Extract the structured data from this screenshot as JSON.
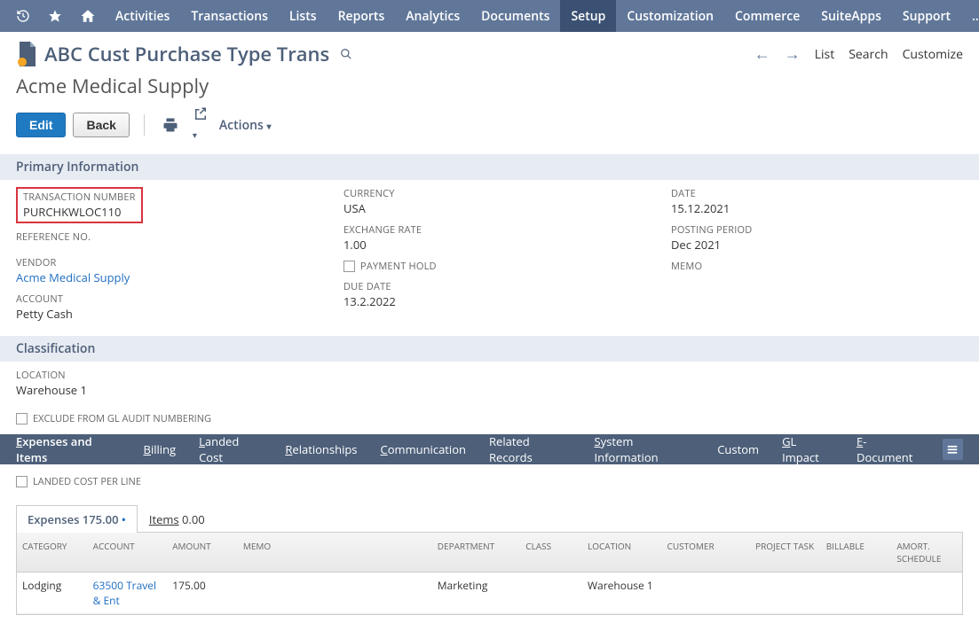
{
  "nav": {
    "items": [
      "Activities",
      "Transactions",
      "Lists",
      "Reports",
      "Analytics",
      "Documents",
      "Setup",
      "Customization",
      "Commerce",
      "SuiteApps",
      "Support"
    ],
    "active_index": 6,
    "more": "..."
  },
  "header": {
    "title": "ABC Cust Purchase Type Trans",
    "subtitle": "Acme Medical Supply",
    "right": {
      "list": "List",
      "search": "Search",
      "customize": "Customize"
    }
  },
  "actions": {
    "edit": "Edit",
    "back": "Back",
    "actions_label": "Actions"
  },
  "sections": {
    "primary": "Primary Information",
    "classification": "Classification"
  },
  "fields": {
    "transaction_number": {
      "label": "TRANSACTION NUMBER",
      "value": "PURCHKWLOC110"
    },
    "reference_no": {
      "label": "REFERENCE NO."
    },
    "vendor": {
      "label": "VENDOR",
      "value": "Acme Medical Supply"
    },
    "account": {
      "label": "ACCOUNT",
      "value": "Petty Cash"
    },
    "currency": {
      "label": "CURRENCY",
      "value": "USA"
    },
    "exchange_rate": {
      "label": "EXCHANGE RATE",
      "value": "1.00"
    },
    "payment_hold": {
      "label": "PAYMENT HOLD"
    },
    "due_date": {
      "label": "DUE DATE",
      "value": "13.2.2022"
    },
    "date": {
      "label": "DATE",
      "value": "15.12.2021"
    },
    "posting_period": {
      "label": "POSTING PERIOD",
      "value": "Dec 2021"
    },
    "memo": {
      "label": "MEMO"
    },
    "location": {
      "label": "LOCATION",
      "value": "Warehouse 1"
    },
    "exclude_gl": "EXCLUDE FROM GL AUDIT NUMBERING",
    "landed_cost_per_line": "LANDED COST PER LINE"
  },
  "subtabs": [
    "Expenses and Items",
    "Billing",
    "Landed Cost",
    "Relationships",
    "Communication",
    "Related Records",
    "System Information",
    "Custom",
    "GL Impact",
    "E-Document"
  ],
  "subtabs_underline_first": [
    "E",
    "B",
    "L",
    "R",
    "C",
    "",
    "S",
    "",
    "G",
    "E"
  ],
  "subtabs_active_index": 0,
  "inner_tabs": {
    "expenses": {
      "label": "Expenses",
      "amount": "175.00",
      "flag": "•"
    },
    "items": {
      "label": "Items",
      "amount": "0.00"
    }
  },
  "grid": {
    "columns": [
      "CATEGORY",
      "ACCOUNT",
      "AMOUNT",
      "MEMO",
      "DEPARTMENT",
      "CLASS",
      "LOCATION",
      "CUSTOMER",
      "PROJECT TASK",
      "BILLABLE",
      "AMORT. SCHEDULE"
    ],
    "rows": [
      {
        "category": "Lodging",
        "account": "63500 Travel & Ent",
        "amount": "175.00",
        "memo": "",
        "department": "Marketing",
        "class": "",
        "location": "Warehouse 1",
        "customer": "",
        "project_task": "",
        "billable": "",
        "amort": ""
      }
    ]
  },
  "colors": {
    "nav_bg": "#607799",
    "nav_active": "#3a5173",
    "section_bg": "#e7ebf2",
    "accent": "#4d5f79",
    "link": "#1f6ec2",
    "highlight_border": "#d9333f",
    "primary_btn": "#207ac2"
  }
}
